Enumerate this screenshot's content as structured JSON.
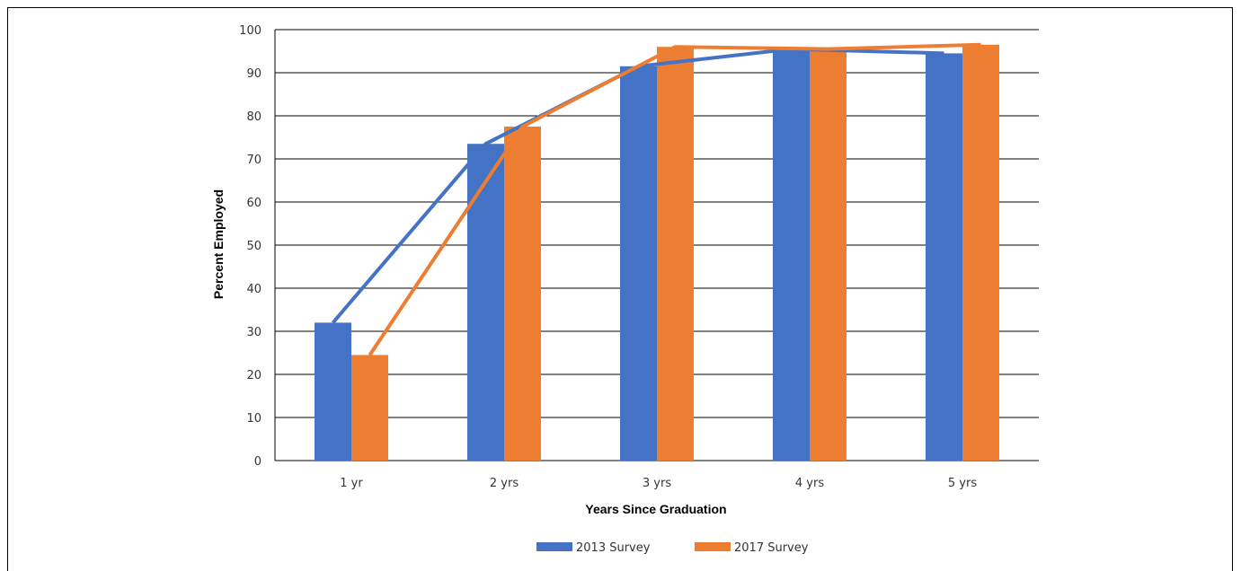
{
  "chart_data": {
    "type": "bar",
    "title": "",
    "xlabel": "Years Since Graduation",
    "ylabel": "Percent Employed",
    "ylim": [
      0,
      100
    ],
    "yticks": [
      0,
      10,
      20,
      30,
      40,
      50,
      60,
      70,
      80,
      90,
      100
    ],
    "categories": [
      "1 yr",
      "2 yrs",
      "3 yrs",
      "4 yrs",
      "5 yrs"
    ],
    "series": [
      {
        "name": "2013 Survey",
        "color": "#4472C4",
        "values": [
          32,
          73.5,
          91.5,
          95.5,
          94.5
        ]
      },
      {
        "name": "2017 Survey",
        "color": "#ED7D31",
        "values": [
          24.5,
          77.5,
          96,
          95.5,
          96.5
        ]
      }
    ],
    "overlay": "line connecting each series' bar tops",
    "grid": true,
    "legend": "bottom"
  }
}
